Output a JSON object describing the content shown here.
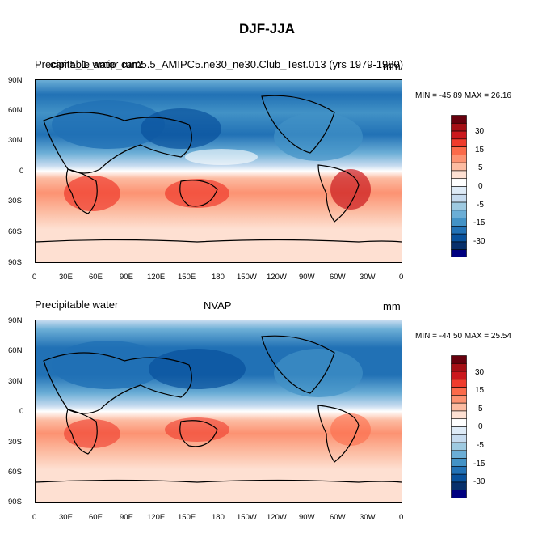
{
  "main_title": "DJF-JJA",
  "panels": [
    {
      "left_title": "Precipitable water",
      "overlay_title": "cam5_1_amip_run2",
      "center_title": "cam5.5_AMIPC5.ne30_ne30.Club_Test.013 (yrs 1979-1980)",
      "units": "mm",
      "minmax": "MIN = -45.89 MAX =  26.16",
      "lat_labels": [
        "90N",
        "60N",
        "30N",
        "0",
        "30S",
        "60S",
        "90S"
      ],
      "lon_labels": [
        "0",
        "30E",
        "60E",
        "90E",
        "120E",
        "150E",
        "180",
        "150W",
        "120W",
        "90W",
        "60W",
        "30W",
        "0"
      ]
    },
    {
      "left_title": "Precipitable water",
      "center_title": "NVAP",
      "units": "mm",
      "minmax": "MIN = -44.50 MAX =  25.54",
      "lat_labels": [
        "90N",
        "60N",
        "30N",
        "0",
        "30S",
        "60S",
        "90S"
      ],
      "lon_labels": [
        "0",
        "30E",
        "60E",
        "90E",
        "120E",
        "150E",
        "180",
        "150W",
        "120W",
        "90W",
        "60W",
        "30W",
        "0"
      ]
    }
  ],
  "colorbar": {
    "labels": [
      "30",
      "15",
      "5",
      "0",
      "-5",
      "-15",
      "-30"
    ],
    "colors": [
      "#67000d",
      "#a50f15",
      "#cb181d",
      "#ef3b2c",
      "#fb6a4a",
      "#fc9272",
      "#fcbba1",
      "#fee0d2",
      "#ffffff",
      "#deebf7",
      "#c6dbef",
      "#9ecae1",
      "#6baed6",
      "#4292c6",
      "#2171b5",
      "#08519c",
      "#08306b",
      "#000080"
    ]
  }
}
